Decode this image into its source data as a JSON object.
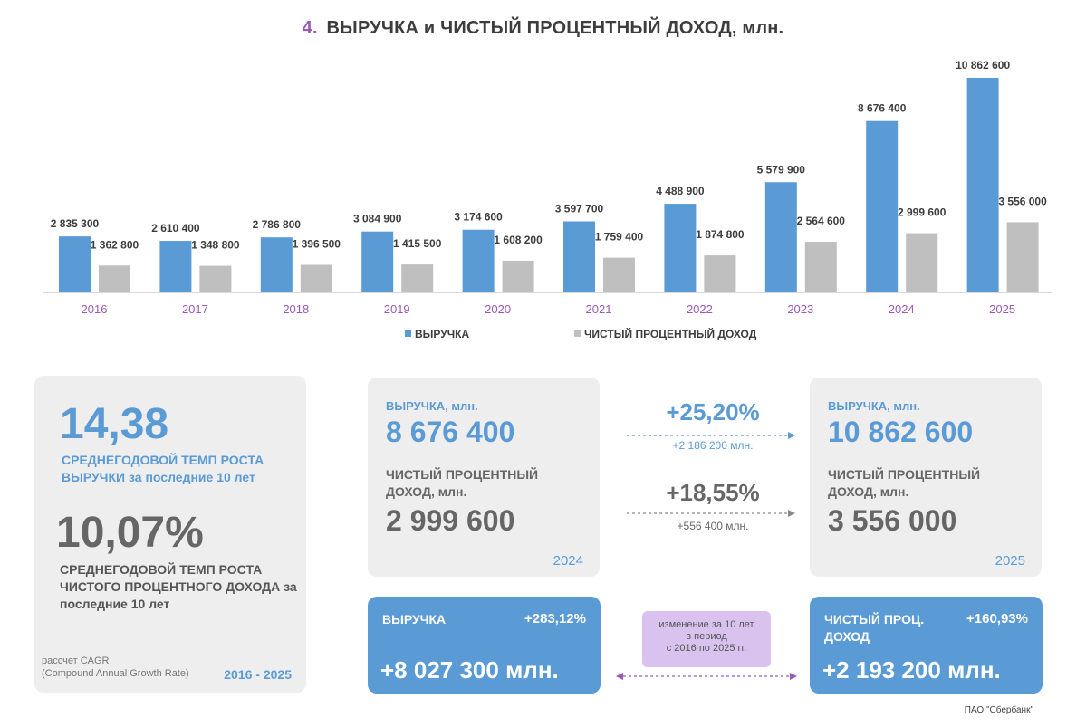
{
  "header": {
    "number": "4.",
    "title": "ВЫРУЧКА и ЧИСТЫЙ ПРОЦЕНТНЫЙ ДОХОД, млн."
  },
  "chart_data": {
    "type": "bar",
    "categories": [
      "2016",
      "2017",
      "2018",
      "2019",
      "2020",
      "2021",
      "2022",
      "2023",
      "2024",
      "2025"
    ],
    "series": [
      {
        "name": "ВЫРУЧКА",
        "color": "#5b9bd5",
        "values": [
          2835300,
          2610400,
          2786800,
          3084900,
          3174600,
          3597700,
          4488900,
          5579900,
          8676400,
          10862600
        ],
        "labels": [
          "2 835 300",
          "2 610 400",
          "2 786 800",
          "3 084 900",
          "3 174 600",
          "3 597 700",
          "4 488 900",
          "5 579 900",
          "8 676 400",
          "10 862 600"
        ]
      },
      {
        "name": "ЧИСТЫЙ ПРОЦЕНТНЫЙ ДОХОД",
        "color": "#bfbfbf",
        "values": [
          1362800,
          1348800,
          1396500,
          1415500,
          1608200,
          1759400,
          1874800,
          2564600,
          2999600,
          3556000
        ],
        "labels": [
          "1 362 800",
          "1 348 800",
          "1 396 500",
          "1 415 500",
          "1 608 200",
          "1 759 400",
          "1 874 800",
          "2 564 600",
          "2 999 600",
          "3 556 000"
        ]
      }
    ],
    "ylim": [
      0,
      10862600
    ],
    "grid": false,
    "legend": "bottom-center"
  },
  "cagr": {
    "revenue_value": "14,38",
    "revenue_label": "СРЕДНЕГОДОВОЙ ТЕМП РОСТА ВЫРУЧКИ за последние 10 лет",
    "nii_value": "10,07%",
    "nii_label": "СРЕДНЕГОДОВОЙ ТЕМП РОСТА ЧИСТОГО ПРОЦЕНТНОГО ДОХОДА за последние 10 лет",
    "note_line1": "рассчет CAGR",
    "note_line2": "(Compound Annual Growth Rate)",
    "period": "2016 - 2025"
  },
  "card_2024": {
    "revenue_label": "ВЫРУЧКА, млн.",
    "revenue_value": "8 676 400",
    "nii_label": "ЧИСТЫЙ ПРОЦЕНТНЫЙ ДОХОД, млн.",
    "nii_value": "2 999 600",
    "year": "2024"
  },
  "card_2025": {
    "revenue_label": "ВЫРУЧКА, млн.",
    "revenue_value": "10 862 600",
    "nii_label": "ЧИСТЫЙ ПРОЦЕНТНЫЙ ДОХОД, млн.",
    "nii_value": "3 556 000",
    "year": "2025"
  },
  "change": {
    "revenue_pct": "+25,20%",
    "revenue_abs": "+2 186 200 млн.",
    "nii_pct": "+18,55%",
    "nii_abs": "+556 400 млн."
  },
  "ten_year": {
    "revenue_label": "ВЫРУЧКА",
    "revenue_pct": "+283,12%",
    "revenue_abs": "+8 027 300 млн.",
    "nii_label": "ЧИСТЫЙ ПРОЦ. ДОХОД",
    "nii_pct": "+160,93%",
    "nii_abs": "+2 193 200 млн.",
    "note_line1": "изменение за 10 лет",
    "note_line2": "в период",
    "note_line3": "с 2016 по 2025 гг."
  },
  "footer": {
    "source": "ПАО \"Сбербанк\""
  },
  "colors": {
    "accent_blue": "#5b9bd5",
    "accent_purple": "#9b59b6",
    "bar_gray": "#bfbfbf"
  }
}
